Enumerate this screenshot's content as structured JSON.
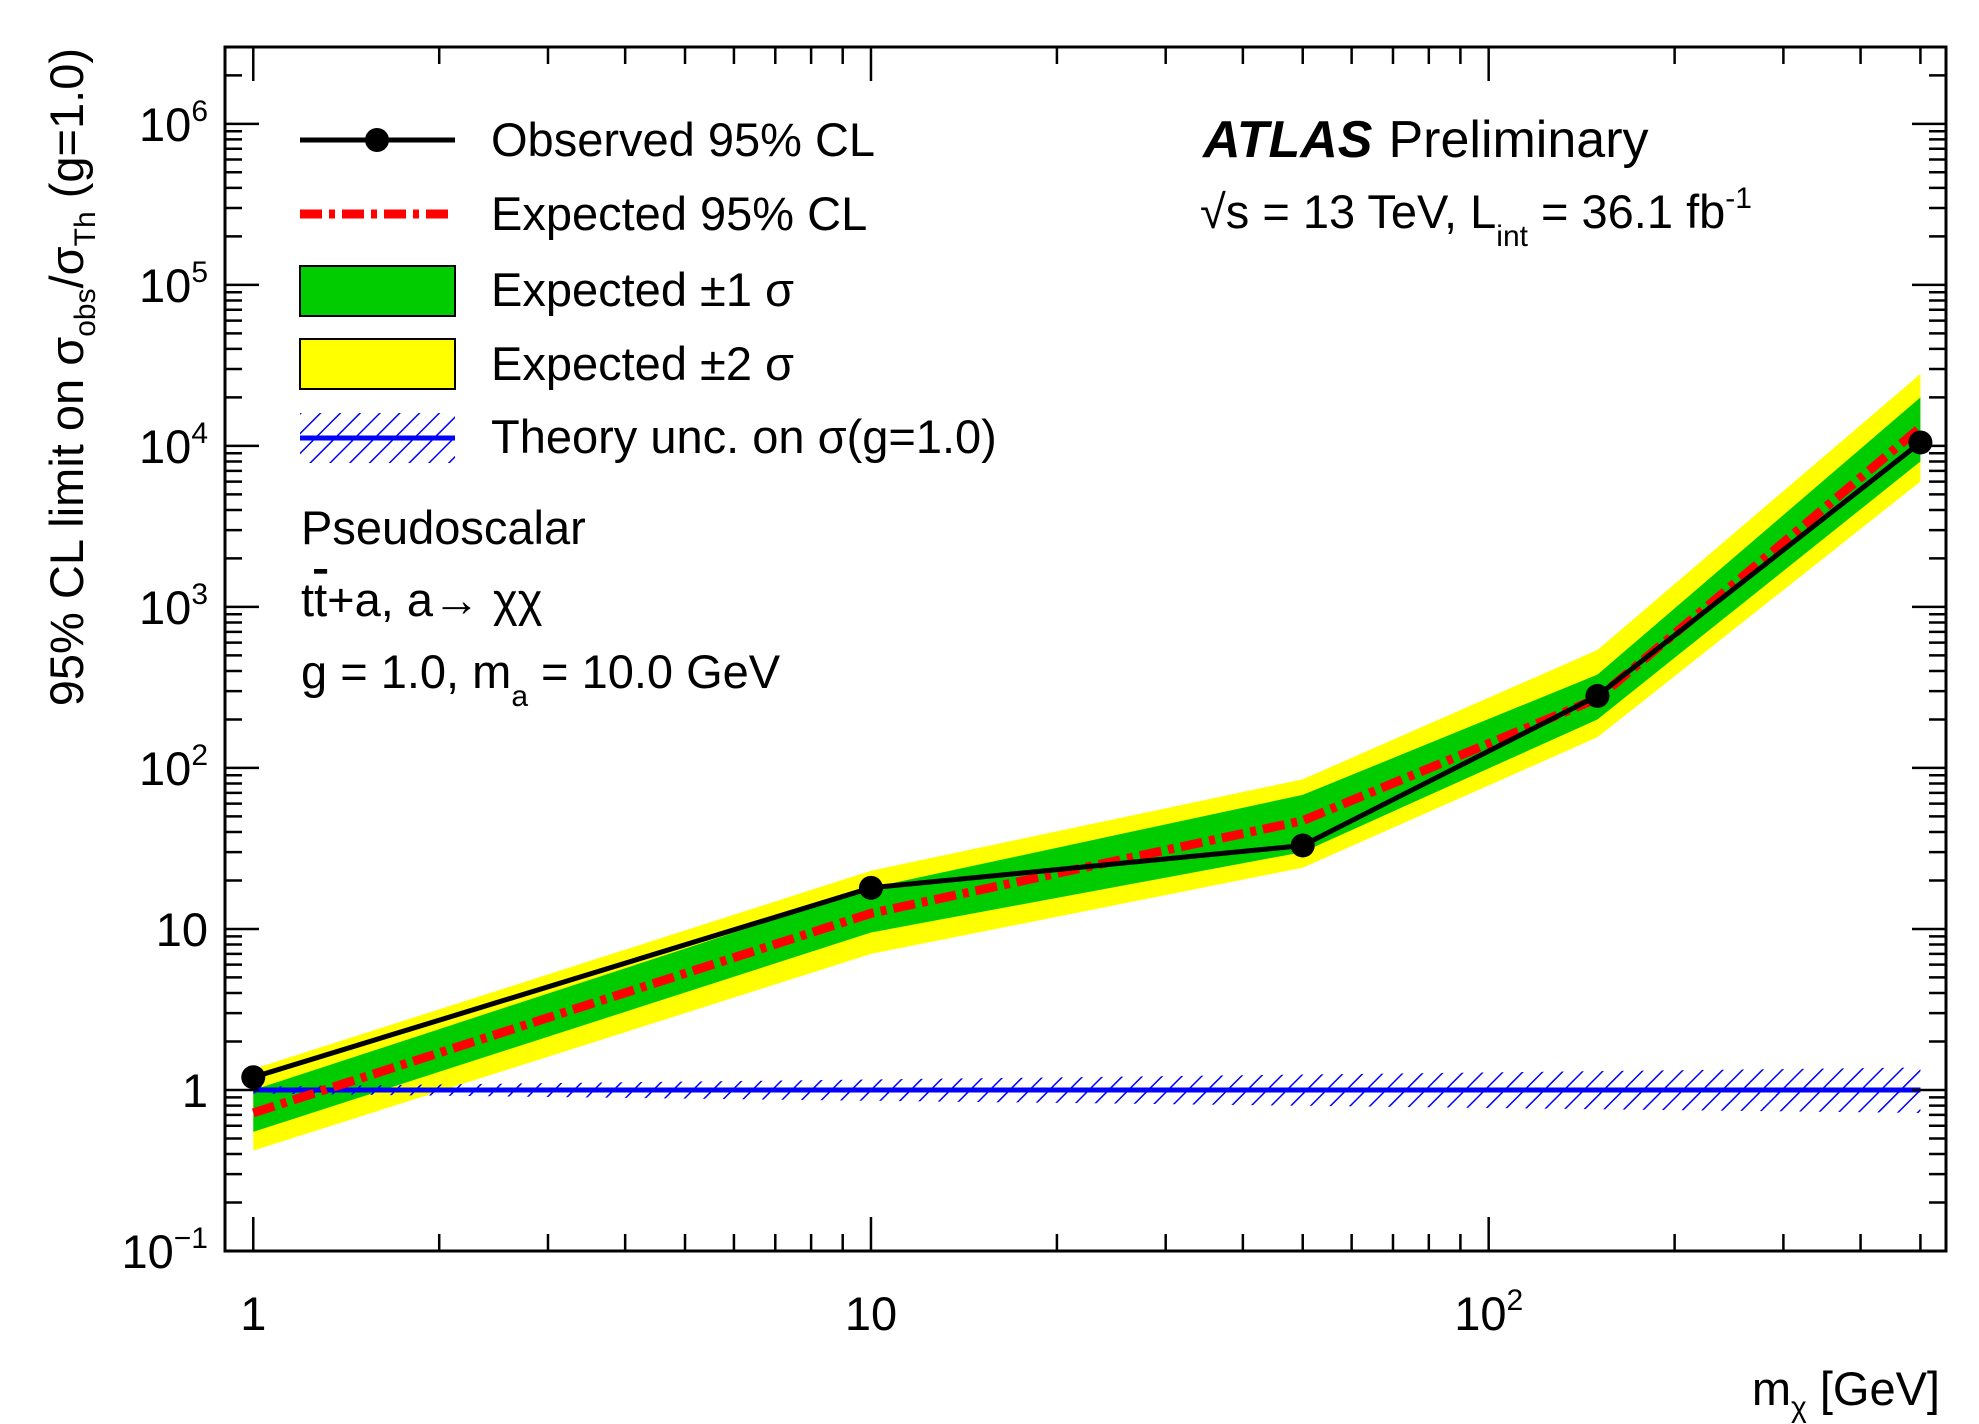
{
  "chart_data": {
    "type": "line",
    "x_scale": "log",
    "y_scale": "log",
    "xlim": [
      0.9,
      550
    ],
    "ylim": [
      0.1,
      3000000
    ],
    "xlabel": {
      "main": "m",
      "sub": "χ",
      "unit": " [GeV]"
    },
    "ylabel": {
      "prefix": "95% CL limit on σ",
      "sub1": "obs",
      "mid": "/σ",
      "sub2": "Th",
      "suffix": " (g=1.0)"
    },
    "x_ticks": [
      {
        "value": 1,
        "label": "1"
      },
      {
        "value": 10,
        "label": "10"
      },
      {
        "value": 100,
        "base": "10",
        "exp": "2"
      }
    ],
    "y_ticks": [
      {
        "value": 0.1,
        "base": "10",
        "exp": "−1"
      },
      {
        "value": 1,
        "label": "1"
      },
      {
        "value": 10,
        "label": "10"
      },
      {
        "value": 100,
        "base": "10",
        "exp": "2"
      },
      {
        "value": 1000,
        "base": "10",
        "exp": "3"
      },
      {
        "value": 10000,
        "base": "10",
        "exp": "4"
      },
      {
        "value": 100000,
        "base": "10",
        "exp": "5"
      },
      {
        "value": 1000000,
        "base": "10",
        "exp": "6"
      }
    ],
    "x": [
      1,
      10,
      50,
      150,
      500
    ],
    "series": [
      {
        "name": "Observed 95% CL",
        "values": [
          1.2,
          18,
          33,
          280,
          10500
        ],
        "color": "#000000"
      },
      {
        "name": "Expected 95% CL",
        "values": [
          0.72,
          12.5,
          47,
          270,
          13000
        ],
        "color": "#ff0000"
      },
      {
        "name": "Expected ±1 σ",
        "low": [
          0.55,
          9.5,
          30,
          200,
          8000
        ],
        "high": [
          1.0,
          18,
          68,
          380,
          20000
        ],
        "color": "#00cc00"
      },
      {
        "name": "Expected ±2 σ",
        "low": [
          0.42,
          7,
          24,
          155,
          6000
        ],
        "high": [
          1.35,
          23,
          85,
          540,
          28000
        ],
        "color": "#ffff00"
      },
      {
        "name": "Theory unc. on σ(g=1.0)",
        "value": 1.0,
        "low_start": 0.95,
        "high_start": 1.05,
        "low_end": 0.72,
        "high_end": 1.38,
        "color": "#0000ff"
      }
    ]
  },
  "legend": {
    "observed": "Observed 95% CL",
    "expected": "Expected 95% CL",
    "band1": "Expected ±1 σ",
    "band2": "Expected ±2 σ",
    "theory": "Theory unc. on σ(g=1.0)"
  },
  "annotations": {
    "atlas": "ATLAS",
    "preliminary": "Preliminary",
    "energy_sqrt": "√",
    "energy_s": "s",
    "energy_rest": " = 13 TeV, L",
    "energy_sub": "int",
    "energy_lumi": " = 36.1 fb",
    "energy_sup": "-1",
    "model": "Pseudoscalar",
    "process_t": "t",
    "process_tbar": "t",
    "process_rest": "+a, a→ χχ",
    "params_pre": "g = 1.0,  m",
    "params_sub": "a",
    "params_post": " = 10.0 GeV"
  }
}
